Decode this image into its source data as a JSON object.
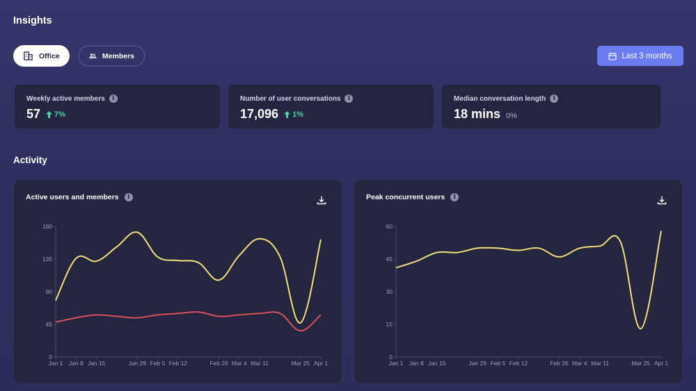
{
  "page": {
    "title": "Insights"
  },
  "tabs": [
    {
      "label": "Office",
      "icon": "building-icon",
      "active": true
    },
    {
      "label": "Members",
      "icon": "users-icon",
      "active": false
    }
  ],
  "range_button": {
    "label": "Last 3 months",
    "icon": "calendar-icon"
  },
  "stats": [
    {
      "label": "Weekly active members",
      "value": "57",
      "change": "7%",
      "trend": "up"
    },
    {
      "label": "Number of user conversations",
      "value": "17,096",
      "change": "1%",
      "trend": "up"
    },
    {
      "label": "Median conversation length",
      "value": "18 mins",
      "change": "0%",
      "trend": "none"
    }
  ],
  "section": {
    "title": "Activity"
  },
  "colors": {
    "accent": "#6a7cf0",
    "positive": "#4fd6a2",
    "series_yellow": "#f7df7a",
    "series_red": "#d9525e"
  },
  "chart_data": [
    {
      "type": "line",
      "title": "Active users and members",
      "x": [
        "Jan 1",
        "Jan 8",
        "Jan 15",
        "Jan 22",
        "Jan 29",
        "Feb 5",
        "Feb 12",
        "Feb 19",
        "Feb 26",
        "Mar 4",
        "Mar 11",
        "Mar 18",
        "Mar 25",
        "Apr 1"
      ],
      "x_tick_labels": [
        "Jan 1",
        "Jan 8",
        "Jan 15",
        "Jan 29",
        "Feb 5",
        "Feb 12",
        "Feb 26",
        "Mar 4",
        "Mar 11",
        "Mar 25",
        "Apr 1"
      ],
      "ylim": [
        0,
        180
      ],
      "yticks": [
        0,
        45,
        90,
        135,
        180
      ],
      "series": [
        {
          "color": "#f7df7a",
          "values": [
            78,
            136,
            132,
            152,
            172,
            138,
            133,
            130,
            106,
            140,
            163,
            138,
            47,
            162
          ]
        },
        {
          "color": "#d9525e",
          "values": [
            48,
            54,
            58,
            56,
            54,
            58,
            60,
            62,
            56,
            58,
            60,
            60,
            36,
            58
          ]
        }
      ],
      "download_icon": "download-icon"
    },
    {
      "type": "line",
      "title": "Peak concurrent users",
      "x": [
        "Jan 1",
        "Jan 8",
        "Jan 15",
        "Jan 22",
        "Jan 29",
        "Feb 5",
        "Feb 12",
        "Feb 19",
        "Feb 26",
        "Mar 4",
        "Mar 11",
        "Mar 18",
        "Mar 25",
        "Apr 1"
      ],
      "x_tick_labels": [
        "Jan 1",
        "Jan 8",
        "Jan 15",
        "Jan 29",
        "Feb 5",
        "Feb 12",
        "Feb 26",
        "Mar 4",
        "Mar 11",
        "Mar 25",
        "Apr 1"
      ],
      "ylim": [
        0,
        60
      ],
      "yticks": [
        0,
        15,
        30,
        45,
        60
      ],
      "series": [
        {
          "color": "#f7df7a",
          "values": [
            41,
            44,
            48,
            48,
            50,
            50,
            49,
            50,
            46,
            50,
            51,
            53,
            13,
            58
          ]
        }
      ],
      "download_icon": "download-icon"
    }
  ]
}
